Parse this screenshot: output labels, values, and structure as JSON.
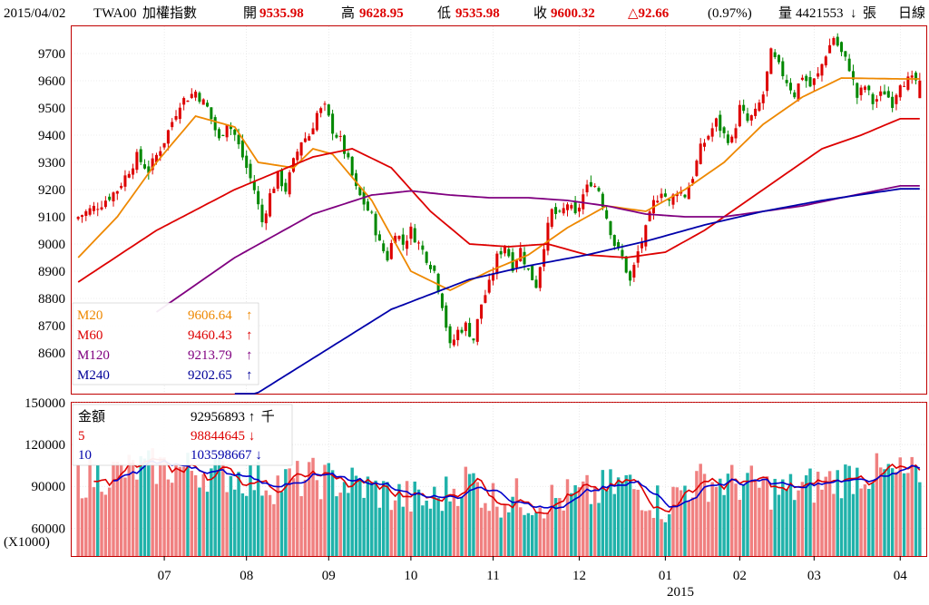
{
  "header": {
    "date": "2015/04/02",
    "symbol": "TWA00",
    "name": "加權指數",
    "open_label": "開",
    "open": "9535.98",
    "high_label": "高",
    "high": "9628.95",
    "low_label": "低",
    "low": "9535.98",
    "close_label": "收",
    "close": "9600.32",
    "change": "△92.66",
    "change_pct": "(0.97%)",
    "volume_label": "量",
    "volume": "4421553",
    "volume_arrow": "↓",
    "volume_unit": "張",
    "period": "日線"
  },
  "colors": {
    "up": "#dd0000",
    "down": "#008800",
    "ma20": "#ee8800",
    "ma60": "#dd0000",
    "ma120": "#800080",
    "ma240": "#0000aa",
    "vol_up": "#f08080",
    "vol_down": "#20b2aa",
    "vol5": "#dd0000",
    "vol10": "#0000cc",
    "frame": "#c00000"
  },
  "price_legend": [
    {
      "name": "M20",
      "value": "9606.64",
      "arrow": "↑",
      "color": "#ee8800"
    },
    {
      "name": "M60",
      "value": "9460.43",
      "arrow": "↑",
      "color": "#dd0000"
    },
    {
      "name": "M120",
      "value": "9213.79",
      "arrow": "↑",
      "color": "#800080"
    },
    {
      "name": "M240",
      "value": "9202.65",
      "arrow": "↑",
      "color": "#000099"
    }
  ],
  "volume_legend": [
    {
      "name": "金額",
      "value": "92956893",
      "arrow": "↑",
      "unit": "千",
      "color": "#000000"
    },
    {
      "name": "5",
      "value": "98844645",
      "arrow": "↓",
      "unit": "",
      "color": "#dd0000"
    },
    {
      "name": "10",
      "value": "103598667",
      "arrow": "↓",
      "unit": "",
      "color": "#0000aa"
    }
  ],
  "volume_scale_note": "(X1000)",
  "x_year_label": "2015",
  "chart_data": [
    {
      "type": "candlestick",
      "ylim": [
        8450,
        9800
      ],
      "y_ticks": [
        8600,
        8700,
        8800,
        8900,
        9000,
        9100,
        9200,
        9300,
        9400,
        9500,
        9600,
        9700
      ],
      "x_ticks": [
        "07",
        "08",
        "09",
        "10",
        "11",
        "12",
        "01",
        "02",
        "03",
        "04"
      ],
      "x_tick_index": [
        22,
        43,
        64,
        85,
        106,
        128,
        150,
        169,
        188,
        210
      ],
      "n_bars": 216,
      "close_anchors": [
        [
          0,
          9100
        ],
        [
          6,
          9150
        ],
        [
          10,
          9200
        ],
        [
          15,
          9320
        ],
        [
          18,
          9270
        ],
        [
          22,
          9380
        ],
        [
          26,
          9520
        ],
        [
          30,
          9560
        ],
        [
          33,
          9500
        ],
        [
          36,
          9380
        ],
        [
          38,
          9450
        ],
        [
          40,
          9400
        ],
        [
          43,
          9280
        ],
        [
          45,
          9200
        ],
        [
          47,
          9080
        ],
        [
          49,
          9180
        ],
        [
          51,
          9250
        ],
        [
          53,
          9200
        ],
        [
          55,
          9300
        ],
        [
          57,
          9380
        ],
        [
          59,
          9400
        ],
        [
          61,
          9480
        ],
        [
          63,
          9500
        ],
        [
          65,
          9420
        ],
        [
          67,
          9380
        ],
        [
          69,
          9300
        ],
        [
          71,
          9200
        ],
        [
          73,
          9150
        ],
        [
          75,
          9100
        ],
        [
          77,
          9000
        ],
        [
          79,
          8950
        ],
        [
          81,
          9050
        ],
        [
          83,
          9000
        ],
        [
          85,
          9050
        ],
        [
          87,
          9000
        ],
        [
          89,
          8950
        ],
        [
          91,
          8900
        ],
        [
          93,
          8780
        ],
        [
          95,
          8620
        ],
        [
          97,
          8680
        ],
        [
          99,
          8700
        ],
        [
          101,
          8650
        ],
        [
          103,
          8780
        ],
        [
          105,
          8850
        ],
        [
          107,
          8950
        ],
        [
          109,
          9000
        ],
        [
          111,
          8920
        ],
        [
          113,
          8980
        ],
        [
          115,
          8900
        ],
        [
          117,
          8850
        ],
        [
          119,
          9000
        ],
        [
          121,
          9120
        ],
        [
          123,
          9100
        ],
        [
          125,
          9150
        ],
        [
          127,
          9100
        ],
        [
          129,
          9180
        ],
        [
          131,
          9230
        ],
        [
          133,
          9200
        ],
        [
          135,
          9100
        ],
        [
          137,
          9000
        ],
        [
          139,
          8950
        ],
        [
          141,
          8860
        ],
        [
          143,
          8970
        ],
        [
          145,
          9050
        ],
        [
          147,
          9150
        ],
        [
          149,
          9200
        ],
        [
          151,
          9150
        ],
        [
          153,
          9200
        ],
        [
          155,
          9180
        ],
        [
          157,
          9250
        ],
        [
          159,
          9350
        ],
        [
          161,
          9400
        ],
        [
          163,
          9450
        ],
        [
          165,
          9400
        ],
        [
          167,
          9380
        ],
        [
          169,
          9500
        ],
        [
          171,
          9450
        ],
        [
          173,
          9480
        ],
        [
          175,
          9550
        ],
        [
          177,
          9700
        ],
        [
          179,
          9650
        ],
        [
          181,
          9600
        ],
        [
          183,
          9550
        ],
        [
          185,
          9620
        ],
        [
          187,
          9580
        ],
        [
          189,
          9620
        ],
        [
          191,
          9700
        ],
        [
          193,
          9760
        ],
        [
          195,
          9700
        ],
        [
          197,
          9650
        ],
        [
          199,
          9540
        ],
        [
          201,
          9580
        ],
        [
          203,
          9520
        ],
        [
          206,
          9560
        ],
        [
          208,
          9520
        ],
        [
          210,
          9600
        ]
      ],
      "ma_values": [
        {
          "name": "M20",
          "anchors": [
            [
              0,
              8950
            ],
            [
              10,
              9100
            ],
            [
              20,
              9300
            ],
            [
              30,
              9470
            ],
            [
              40,
              9430
            ],
            [
              46,
              9300
            ],
            [
              55,
              9280
            ],
            [
              60,
              9350
            ],
            [
              65,
              9330
            ],
            [
              75,
              9160
            ],
            [
              85,
              8900
            ],
            [
              95,
              8830
            ],
            [
              105,
              8900
            ],
            [
              115,
              8960
            ],
            [
              125,
              9060
            ],
            [
              135,
              9140
            ],
            [
              145,
              9120
            ],
            [
              155,
              9200
            ],
            [
              165,
              9300
            ],
            [
              175,
              9440
            ],
            [
              185,
              9540
            ],
            [
              195,
              9610
            ],
            [
              210,
              9606.64
            ]
          ]
        },
        {
          "name": "M60",
          "anchors": [
            [
              0,
              8860
            ],
            [
              20,
              9050
            ],
            [
              40,
              9200
            ],
            [
              60,
              9320
            ],
            [
              70,
              9350
            ],
            [
              80,
              9280
            ],
            [
              90,
              9120
            ],
            [
              100,
              9000
            ],
            [
              110,
              8990
            ],
            [
              120,
              9000
            ],
            [
              130,
              8960
            ],
            [
              140,
              8950
            ],
            [
              150,
              8970
            ],
            [
              160,
              9050
            ],
            [
              170,
              9150
            ],
            [
              180,
              9250
            ],
            [
              190,
              9350
            ],
            [
              200,
              9400
            ],
            [
              210,
              9460.43
            ]
          ]
        },
        {
          "name": "M120",
          "anchors": [
            [
              20,
              8750
            ],
            [
              40,
              8950
            ],
            [
              60,
              9110
            ],
            [
              75,
              9180
            ],
            [
              85,
              9195
            ],
            [
              95,
              9180
            ],
            [
              105,
              9170
            ],
            [
              115,
              9170
            ],
            [
              125,
              9160
            ],
            [
              135,
              9140
            ],
            [
              145,
              9110
            ],
            [
              155,
              9100
            ],
            [
              165,
              9100
            ],
            [
              175,
              9120
            ],
            [
              185,
              9140
            ],
            [
              195,
              9170
            ],
            [
              210,
              9213.79
            ]
          ]
        },
        {
          "name": "M240",
          "anchors": [
            [
              40,
              8400
            ],
            [
              60,
              8580
            ],
            [
              80,
              8760
            ],
            [
              100,
              8870
            ],
            [
              115,
              8920
            ],
            [
              130,
              8960
            ],
            [
              145,
              9010
            ],
            [
              160,
              9070
            ],
            [
              175,
              9120
            ],
            [
              190,
              9160
            ],
            [
              210,
              9202.65
            ]
          ]
        }
      ]
    },
    {
      "type": "bar",
      "ylim": [
        40000,
        150000
      ],
      "y_ticks": [
        60000,
        90000,
        120000,
        150000
      ],
      "unit": "(X1000)",
      "volume_anchors": [
        [
          0,
          95000
        ],
        [
          10,
          100000
        ],
        [
          20,
          104000
        ],
        [
          30,
          102000
        ],
        [
          40,
          98000
        ],
        [
          50,
          92000
        ],
        [
          60,
          96000
        ],
        [
          70,
          92000
        ],
        [
          80,
          84000
        ],
        [
          90,
          78000
        ],
        [
          100,
          96000
        ],
        [
          105,
          82000
        ],
        [
          110,
          82000
        ],
        [
          120,
          80000
        ],
        [
          130,
          84000
        ],
        [
          140,
          92000
        ],
        [
          150,
          76000
        ],
        [
          155,
          90000
        ],
        [
          160,
          94000
        ],
        [
          170,
          92000
        ],
        [
          180,
          86000
        ],
        [
          190,
          92000
        ],
        [
          200,
          100000
        ],
        [
          210,
          98000
        ]
      ],
      "ma_values": [
        {
          "name": "5",
          "last": 98844645
        },
        {
          "name": "10",
          "last": 103598667
        }
      ]
    }
  ]
}
